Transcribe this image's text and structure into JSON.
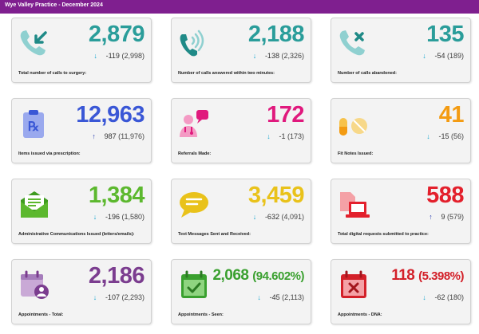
{
  "header": {
    "title": "Wye Valley Practice - December 2024"
  },
  "cards": [
    {
      "value": "2,879",
      "change": "-119",
      "previous": "(2,998)",
      "direction": "down",
      "label": "Total number of calls to surgery:",
      "icon": "phone-incoming-icon",
      "color": "#2a9d9a"
    },
    {
      "value": "2,188",
      "change": "-138",
      "previous": "(2,326)",
      "direction": "down",
      "label": "Number of calls answered within two minutes:",
      "icon": "phone-ringing-icon",
      "color": "#2a9d9a"
    },
    {
      "value": "135",
      "change": "-54",
      "previous": "(189)",
      "direction": "down",
      "label": "Number of calls abandoned:",
      "icon": "phone-missed-icon",
      "color": "#2a9d9a"
    },
    {
      "value": "12,963",
      "change": "987",
      "previous": "(11,976)",
      "direction": "up",
      "label": "Items issued via prescription:",
      "icon": "prescription-clipboard-icon",
      "color": "#3a57d6"
    },
    {
      "value": "172",
      "change": "-1",
      "previous": "(173)",
      "direction": "down",
      "label": "Referrals Made:",
      "icon": "doctor-consultation-icon",
      "color": "#e0197d"
    },
    {
      "value": "41",
      "change": "-15",
      "previous": "(56)",
      "direction": "down",
      "label": "Fit Notes Issued:",
      "icon": "pills-icon",
      "color": "#f39b12"
    },
    {
      "value": "1,384",
      "change": "-196",
      "previous": "(1,580)",
      "direction": "down",
      "label": "Administrative Communications Issued (letters/emails):",
      "icon": "envelope-letter-icon",
      "color": "#5cb82e"
    },
    {
      "value": "3,459",
      "change": "-632",
      "previous": "(4,091)",
      "direction": "down",
      "label": "Text Messages Sent and Received:",
      "icon": "chat-bubble-icon",
      "color": "#e9c21a"
    },
    {
      "value": "588",
      "change": "9",
      "previous": "(579)",
      "direction": "up",
      "label": "Total digital requests submitted to practice:",
      "icon": "laptop-document-icon",
      "color": "#e3202c"
    },
    {
      "value": "2,186",
      "change": "-107",
      "previous": "(2,293)",
      "direction": "down",
      "label": "Appointments - Total:",
      "icon": "calendar-person-icon",
      "color": "#7b3d8f"
    },
    {
      "value": "2,068",
      "pct": "(94.602%)",
      "change": "-45",
      "previous": "(2,113)",
      "direction": "down",
      "label": "Appointments - Seen:",
      "icon": "calendar-check-icon",
      "color": "#3aa02f"
    },
    {
      "value": "118",
      "pct": "(5.398%)",
      "change": "-62",
      "previous": "(180)",
      "direction": "down",
      "label": "Appointments - DNA:",
      "icon": "calendar-cross-icon",
      "color": "#d32029"
    }
  ]
}
